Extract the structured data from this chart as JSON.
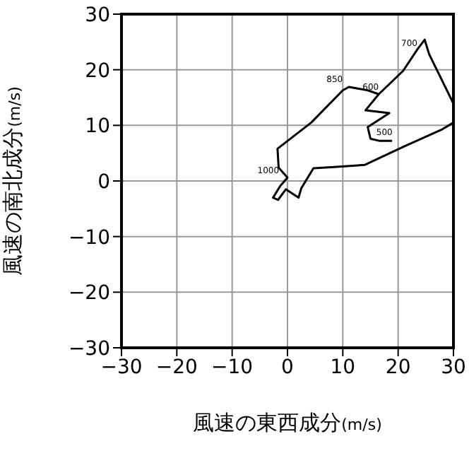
{
  "chart_data": {
    "type": "line",
    "xlabel": "風速の東西成分(m/s)",
    "ylabel": "風速の南北成分(m/s)",
    "xlim": [
      -30,
      30
    ],
    "ylim": [
      -30,
      30
    ],
    "xticks": [
      -30,
      -20,
      -10,
      0,
      10,
      20,
      30
    ],
    "yticks": [
      -30,
      -20,
      -10,
      0,
      10,
      20,
      30
    ],
    "grid": true,
    "line_style": "solid",
    "series": [
      {
        "color": "#000000",
        "x": [
          18.9,
          16.7,
          15,
          14.5,
          18.4,
          14.1,
          16.5,
          20.9,
          23.5,
          24.8,
          25.6,
          30,
          30,
          28,
          21.3,
          14,
          8.5,
          4.7,
          2.5,
          2,
          -0.3,
          -1.7,
          -2.6,
          -1.3,
          0,
          -1.6,
          -1.8,
          4.3,
          10,
          11.1,
          14.5,
          16.5
        ],
        "values": [
          7.2,
          7.2,
          7.6,
          9.7,
          12.2,
          12.7,
          15.6,
          19.8,
          23.7,
          25.4,
          22.8,
          13.9,
          10.5,
          9.3,
          6.3,
          2.9,
          2.5,
          2.3,
          -1.3,
          -3,
          -1.5,
          -3.4,
          -3,
          -0.9,
          0.6,
          2.4,
          5.8,
          10.5,
          16.3,
          16.9,
          16.3,
          15.6
        ]
      }
    ],
    "annotations": [
      {
        "text": "1000",
        "x": -1,
        "y": 0.6
      },
      {
        "text": "850",
        "x": 10.5,
        "y": 17
      },
      {
        "text": "600",
        "x": 17,
        "y": 15.6
      },
      {
        "text": "700",
        "x": 24,
        "y": 23.5
      },
      {
        "text": "500",
        "x": 19.5,
        "y": 7.5
      }
    ]
  }
}
